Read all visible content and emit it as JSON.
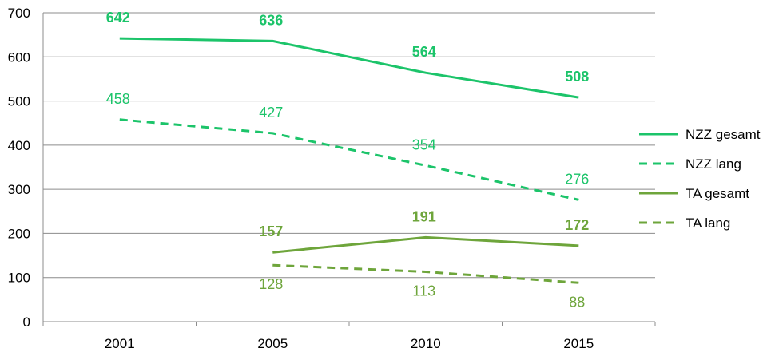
{
  "chart_data": {
    "type": "line",
    "categories": [
      "2001",
      "2005",
      "2010",
      "2015"
    ],
    "ylim": [
      0,
      700
    ],
    "yticks": [
      0,
      100,
      200,
      300,
      400,
      500,
      600,
      700
    ],
    "grid": true,
    "legend_position": "right",
    "series": [
      {
        "name": "NZZ gesamt",
        "values": [
          642,
          636,
          564,
          508
        ],
        "color": "#1cc46a",
        "dashed": false,
        "bold_labels": true,
        "label_position": "above"
      },
      {
        "name": "NZZ lang",
        "values": [
          458,
          427,
          354,
          276
        ],
        "color": "#1cc46a",
        "dashed": true,
        "bold_labels": false,
        "label_position": "above"
      },
      {
        "name": "TA gesamt",
        "values": [
          null,
          157,
          191,
          172
        ],
        "color": "#6ea53b",
        "dashed": false,
        "bold_labels": true,
        "label_position": "above"
      },
      {
        "name": "TA lang",
        "values": [
          null,
          128,
          113,
          88
        ],
        "color": "#6ea53b",
        "dashed": true,
        "bold_labels": false,
        "label_position": "below"
      }
    ]
  }
}
